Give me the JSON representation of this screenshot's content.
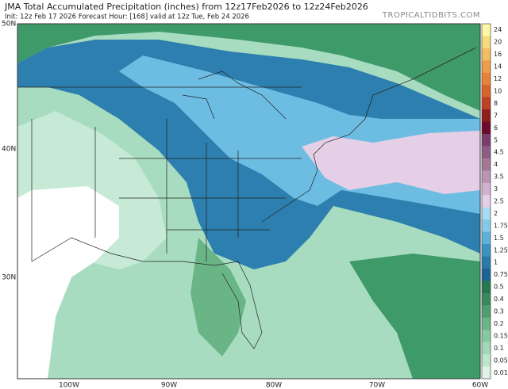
{
  "header": {
    "title": "JMA Total Accumulated Precipitation (inches) from 12z17Feb2026 to 12z24Feb2026",
    "subtitle": "Init: 12z Feb 17 2026   Forecast Hour: [168]   valid at 12z Tue, Feb 24 2026",
    "watermark": "TROPICALTIDBITS.COM"
  },
  "map": {
    "lat_labels": [
      "50N",
      "40N",
      "30N"
    ],
    "lon_labels": [
      "100W",
      "90W",
      "80W",
      "70W",
      "60W"
    ]
  },
  "colorbar": {
    "labels": [
      "24",
      "20",
      "16",
      "14",
      "12",
      "10",
      "8",
      "7",
      "6",
      "5",
      "4.5",
      "4",
      "3.5",
      "3",
      "2.5",
      "2",
      "1.75",
      "1.5",
      "1.25",
      "1",
      "0.75",
      "0.5",
      "0.4",
      "0.3",
      "0.2",
      "0.15",
      "0.1",
      "0.05",
      "0.01"
    ],
    "colors": [
      "#fdf7a6",
      "#f6dc7c",
      "#f1bf62",
      "#ec9f4a",
      "#e5823a",
      "#d6622c",
      "#bd4222",
      "#8e1f1f",
      "#6b0c2e",
      "#7c3c6c",
      "#8e5c84",
      "#a27896",
      "#ba94b4",
      "#d2b2d2",
      "#e4cfe6",
      "#a9dcf1",
      "#84cae9",
      "#5eb2da",
      "#3c93c2",
      "#2a7aab",
      "#1c6493",
      "#24784e",
      "#368a5c",
      "#4f9e6e",
      "#6ab586",
      "#86c99e",
      "#a2d8b6",
      "#bee6cc",
      "#dcf3e6"
    ]
  }
}
